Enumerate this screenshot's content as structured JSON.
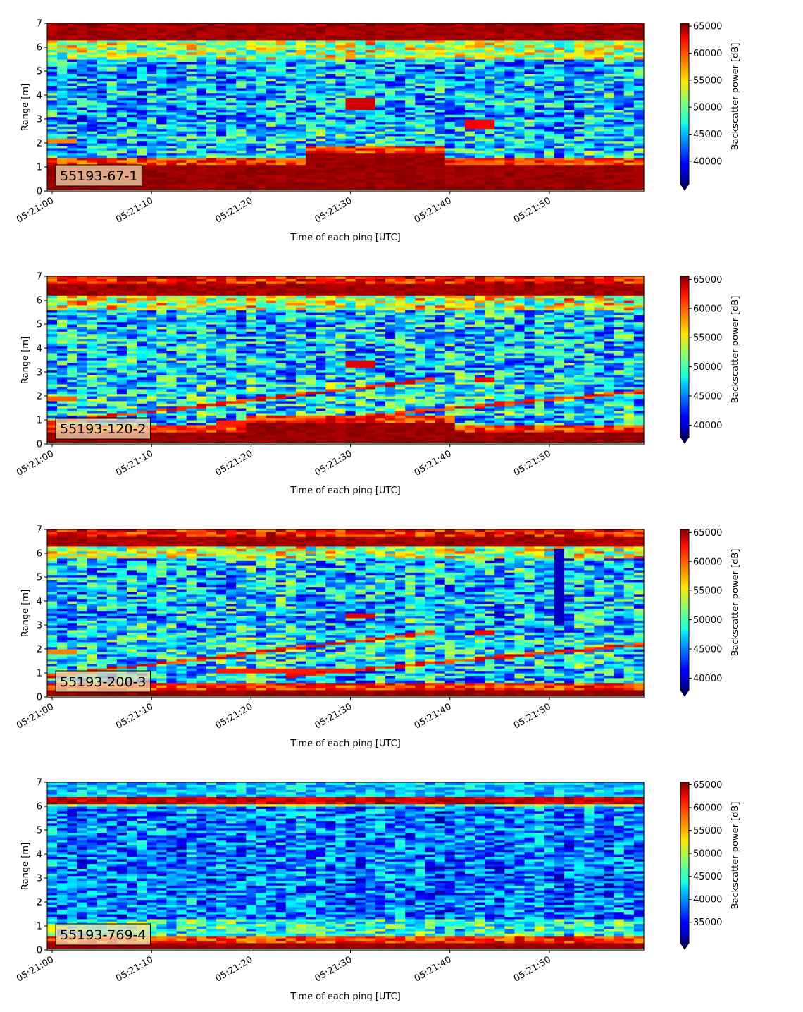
{
  "chart_data": [
    {
      "type": "heatmap",
      "label": "55193-67-1",
      "xlabel": "Time of each ping [UTC]",
      "ylabel": "Range [m]",
      "x_ticks": [
        "05:21:00",
        "05:21:10",
        "05:21:20",
        "05:21:30",
        "05:21:40",
        "05:21:50"
      ],
      "x_range_seconds": [
        -0.5,
        59.5
      ],
      "ylim": [
        0,
        7
      ],
      "y_ticks": [
        0,
        1,
        2,
        3,
        4,
        5,
        6,
        7
      ],
      "colorbar": {
        "label": "Backscatter power [dB]",
        "ticks": [
          40000,
          45000,
          50000,
          55000,
          60000,
          65000
        ],
        "range": [
          35800,
          65535
        ],
        "extend": "min",
        "colormap": "jet"
      },
      "features": {
        "near_band_top_m": 1.15,
        "near_band_rise": [
          26,
          39,
          1.6
        ],
        "surface_band_from_m": 6.3,
        "near_floor_m": 0.15,
        "diagonals": [],
        "horizontals": [
          {
            "t0": 0,
            "t1": 2,
            "y": 2.1,
            "level": 0.75
          }
        ],
        "blobs": [
          {
            "t0": 30,
            "t1": 32,
            "y0": 3.45,
            "y1": 3.85,
            "level": 0.92
          },
          {
            "t0": 42,
            "t1": 44,
            "y0": 2.6,
            "y1": 3.0,
            "level": 0.88
          }
        ],
        "dark_columns": [],
        "mid_noise": 0.32,
        "mid_base": 0.28,
        "upper_warm_m": 5.5
      }
    },
    {
      "type": "heatmap",
      "label": "55193-120-2",
      "xlabel": "Time of each ping [UTC]",
      "ylabel": "Range [m]",
      "x_ticks": [
        "05:21:00",
        "05:21:10",
        "05:21:20",
        "05:21:30",
        "05:21:40",
        "05:21:50"
      ],
      "x_range_seconds": [
        -0.5,
        59.5
      ],
      "ylim": [
        0,
        7
      ],
      "y_ticks": [
        0,
        1,
        2,
        3,
        4,
        5,
        6,
        7
      ],
      "colorbar": {
        "label": "Backscatter power [dB]",
        "ticks": [
          40000,
          45000,
          50000,
          55000,
          60000,
          65000
        ],
        "range": [
          38000,
          65535
        ],
        "extend": "min",
        "colormap": "jet"
      },
      "features": {
        "near_band_top_m": 0.55,
        "near_band_rise": [
          20,
          40,
          0.9
        ],
        "surface_band_from_m": 6.25,
        "near_floor_m": 0.0,
        "diagonals": [
          {
            "t0": 0,
            "t1": 38,
            "y0": 0.9,
            "y1": 2.7
          },
          {
            "t0": 24,
            "t1": 59,
            "y0": 0.9,
            "y1": 2.2
          }
        ],
        "horizontals": [
          {
            "t0": 0,
            "t1": 2,
            "y": 1.9,
            "level": 0.78
          },
          {
            "t0": 17,
            "t1": 30,
            "y": 0.95,
            "level": 0.85
          }
        ],
        "blobs": [
          {
            "t0": 30,
            "t1": 32,
            "y0": 3.25,
            "y1": 3.55,
            "level": 0.9
          },
          {
            "t0": 43,
            "t1": 44,
            "y0": 2.6,
            "y1": 2.8,
            "level": 0.88
          }
        ],
        "dark_columns": [],
        "mid_noise": 0.34,
        "mid_base": 0.3,
        "upper_warm_m": 5.6
      }
    },
    {
      "type": "heatmap",
      "label": "55193-200-3",
      "xlabel": "Time of each ping [UTC]",
      "ylabel": "Range [m]",
      "x_ticks": [
        "05:21:00",
        "05:21:10",
        "05:21:20",
        "05:21:30",
        "05:21:40",
        "05:21:50"
      ],
      "x_range_seconds": [
        -0.5,
        59.5
      ],
      "ylim": [
        0,
        7
      ],
      "y_ticks": [
        0,
        1,
        2,
        3,
        4,
        5,
        6,
        7
      ],
      "colorbar": {
        "label": "Backscatter power [dB]",
        "ticks": [
          40000,
          45000,
          50000,
          55000,
          60000,
          65000
        ],
        "range": [
          38000,
          65535
        ],
        "extend": "min",
        "colormap": "jet"
      },
      "features": {
        "near_band_top_m": 0.3,
        "near_band_rise": [
          0,
          0,
          0
        ],
        "surface_band_from_m": 6.3,
        "near_floor_m": 0.08,
        "diagonals": [
          {
            "t0": 0,
            "t1": 38,
            "y0": 0.9,
            "y1": 2.7
          },
          {
            "t0": 24,
            "t1": 59,
            "y0": 0.9,
            "y1": 2.2
          }
        ],
        "horizontals": [
          {
            "t0": 0,
            "t1": 2,
            "y": 1.9,
            "level": 0.75
          },
          {
            "t0": 17,
            "t1": 30,
            "y": 1.15,
            "level": 0.85
          }
        ],
        "blobs": [
          {
            "t0": 30,
            "t1": 32,
            "y0": 3.3,
            "y1": 3.5,
            "level": 0.9
          },
          {
            "t0": 43,
            "t1": 44,
            "y0": 2.6,
            "y1": 2.8,
            "level": 0.88
          }
        ],
        "dark_columns": [
          {
            "t": 51,
            "y0": 3.0,
            "y1": 6.2
          }
        ],
        "mid_noise": 0.34,
        "mid_base": 0.3,
        "upper_warm_m": 5.8
      }
    },
    {
      "type": "heatmap",
      "label": "55193-769-4",
      "xlabel": "Time of each ping [UTC]",
      "ylabel": "Range [m]",
      "x_ticks": [
        "05:21:00",
        "05:21:10",
        "05:21:20",
        "05:21:30",
        "05:21:40",
        "05:21:50"
      ],
      "x_range_seconds": [
        -0.5,
        59.5
      ],
      "ylim": [
        0,
        7
      ],
      "y_ticks": [
        0,
        1,
        2,
        3,
        4,
        5,
        6,
        7
      ],
      "colorbar": {
        "label": "Backscatter power [dB]",
        "ticks": [
          35000,
          40000,
          45000,
          50000,
          55000,
          60000,
          65000
        ],
        "range": [
          30500,
          65535
        ],
        "extend": "min",
        "colormap": "jet"
      },
      "features": {
        "near_band_top_m": 0.3,
        "near_band_rise": [
          0,
          0,
          0
        ],
        "surface_band_from_m": 6.15,
        "surface_thin": true,
        "near_floor_m": 0.1,
        "diagonals": [],
        "horizontals": [],
        "blobs": [],
        "dark_columns": [],
        "mid_noise": 0.26,
        "mid_base": 0.22,
        "upper_warm_m": 6.0,
        "low_warm": true
      }
    }
  ]
}
